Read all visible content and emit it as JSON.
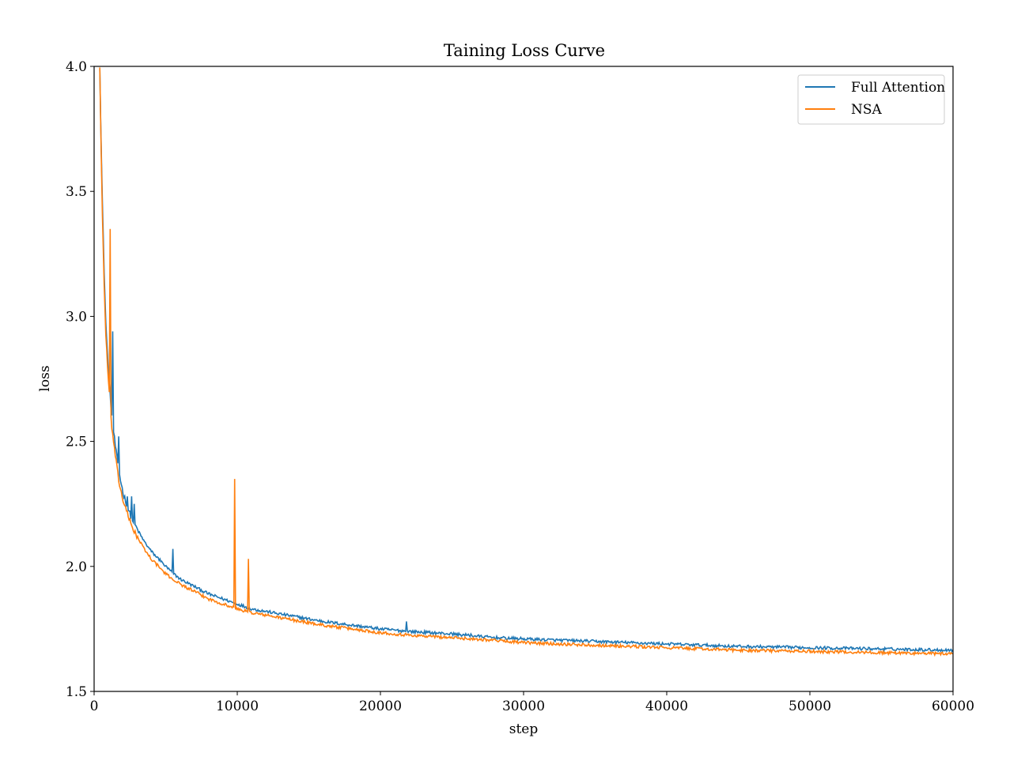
{
  "chart_data": {
    "type": "line",
    "title": "Taining Loss Curve",
    "xlabel": "step",
    "ylabel": "loss",
    "xlim": [
      0,
      60000
    ],
    "ylim": [
      1.5,
      4.0
    ],
    "x_ticks": [
      0,
      10000,
      20000,
      30000,
      40000,
      50000,
      60000
    ],
    "x_tick_labels": [
      "0",
      "10000",
      "20000",
      "30000",
      "40000",
      "50000",
      "60000"
    ],
    "y_ticks": [
      1.5,
      2.0,
      2.5,
      3.0,
      3.5,
      4.0
    ],
    "y_tick_labels": [
      "1.5",
      "2.0",
      "2.5",
      "3.0",
      "3.5",
      "4.0"
    ],
    "grid": false,
    "legend_position": "top-right",
    "series": [
      {
        "name": "Full Attention",
        "color": "#1f77b4",
        "x": [
          400,
          600,
          800,
          1000,
          1200,
          1400,
          1600,
          1800,
          2000,
          2500,
          3000,
          3500,
          4000,
          4500,
          5000,
          6000,
          7000,
          8000,
          9000,
          10000,
          11000,
          12000,
          14000,
          16000,
          18000,
          20000,
          22000,
          25000,
          28000,
          30000,
          35000,
          40000,
          45000,
          50000,
          55000,
          60000
        ],
        "y": [
          4.0,
          3.4,
          3.0,
          2.78,
          2.62,
          2.52,
          2.43,
          2.36,
          2.3,
          2.21,
          2.15,
          2.1,
          2.06,
          2.03,
          2.0,
          1.95,
          1.92,
          1.89,
          1.87,
          1.85,
          1.83,
          1.82,
          1.8,
          1.78,
          1.765,
          1.75,
          1.74,
          1.73,
          1.715,
          1.71,
          1.7,
          1.69,
          1.68,
          1.675,
          1.67,
          1.665
        ],
        "spikes": [
          [
            1300,
            2.94
          ],
          [
            1700,
            2.52
          ],
          [
            2300,
            2.28
          ],
          [
            2600,
            2.28
          ],
          [
            2800,
            2.25
          ],
          [
            4600,
            2.03
          ],
          [
            5500,
            2.07
          ],
          [
            21800,
            1.78
          ],
          [
            26300,
            1.73
          ]
        ]
      },
      {
        "name": "NSA",
        "color": "#ff7f0e",
        "x": [
          400,
          600,
          800,
          1000,
          1200,
          1400,
          1600,
          1800,
          2000,
          2500,
          3000,
          3500,
          4000,
          4500,
          5000,
          6000,
          7000,
          8000,
          9000,
          10000,
          11000,
          12000,
          14000,
          16000,
          18000,
          20000,
          22000,
          25000,
          28000,
          30000,
          35000,
          40000,
          45000,
          50000,
          55000,
          60000
        ],
        "y": [
          4.0,
          3.35,
          2.95,
          2.74,
          2.58,
          2.48,
          2.39,
          2.32,
          2.27,
          2.18,
          2.12,
          2.07,
          2.03,
          2.0,
          1.97,
          1.93,
          1.9,
          1.87,
          1.85,
          1.83,
          1.815,
          1.805,
          1.785,
          1.765,
          1.75,
          1.735,
          1.725,
          1.715,
          1.705,
          1.695,
          1.685,
          1.675,
          1.665,
          1.66,
          1.655,
          1.65
        ],
        "spikes": [
          [
            1100,
            3.35
          ],
          [
            9800,
            2.35
          ],
          [
            10800,
            2.03
          ]
        ]
      }
    ]
  }
}
